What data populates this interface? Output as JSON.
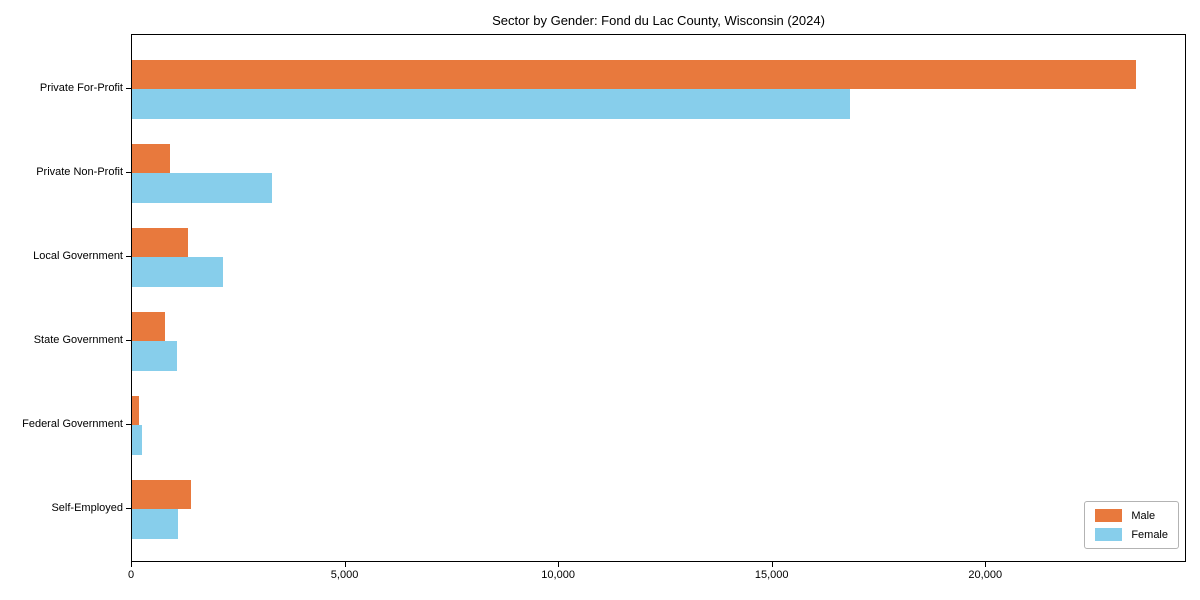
{
  "page": {
    "background": "#ffffff",
    "spine_color": "#000000",
    "text_color": "#000000"
  },
  "chart_data": {
    "type": "bar",
    "orientation": "horizontal",
    "title": "Sector by Gender: Fond du Lac County, Wisconsin (2024)",
    "categories": [
      "Private For-Profit",
      "Private Non-Profit",
      "Local Government",
      "State Government",
      "Federal Government",
      "Self-Employed"
    ],
    "series": [
      {
        "name": "Male",
        "color": "#e8793d",
        "values": [
          23500,
          900,
          1300,
          780,
          160,
          1380
        ]
      },
      {
        "name": "Female",
        "color": "#87ceeb",
        "values": [
          16800,
          3270,
          2120,
          1050,
          240,
          1080
        ]
      }
    ],
    "xlabel": "",
    "ylabel": "",
    "xlim": [
      0,
      24700
    ],
    "xticks": [
      0,
      5000,
      10000,
      15000,
      20000
    ],
    "xtick_labels": [
      "0",
      "5,000",
      "10,000",
      "15,000",
      "20,000"
    ],
    "grid": false,
    "legend": {
      "position": "lower right",
      "labels": [
        "Male",
        "Female"
      ]
    }
  }
}
